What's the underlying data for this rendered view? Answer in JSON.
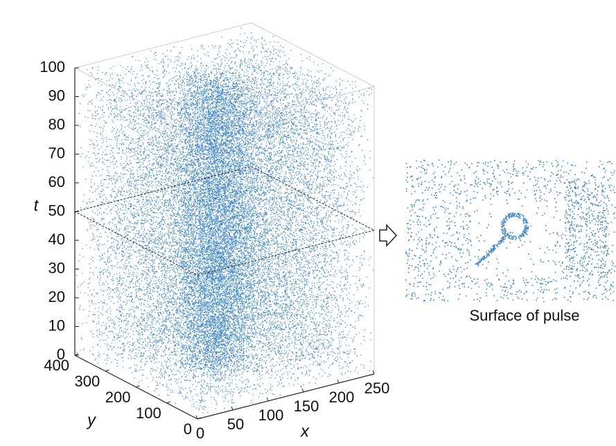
{
  "chart_data": {
    "type": "scatter3d",
    "color": "#0a66b8",
    "xlabel": "x",
    "ylabel": "y",
    "zlabel": "t",
    "xlim": [
      0,
      250
    ],
    "xticks": [
      0,
      50,
      100,
      150,
      200,
      250
    ],
    "ylim": [
      0,
      400
    ],
    "yticks": [
      0,
      100,
      200,
      300,
      400
    ],
    "zlim": [
      0,
      100
    ],
    "zticks": [
      0,
      10,
      20,
      30,
      40,
      50,
      60,
      70,
      80,
      90,
      100
    ],
    "slice_z": 50,
    "inset_caption": "Surface of pulse"
  }
}
